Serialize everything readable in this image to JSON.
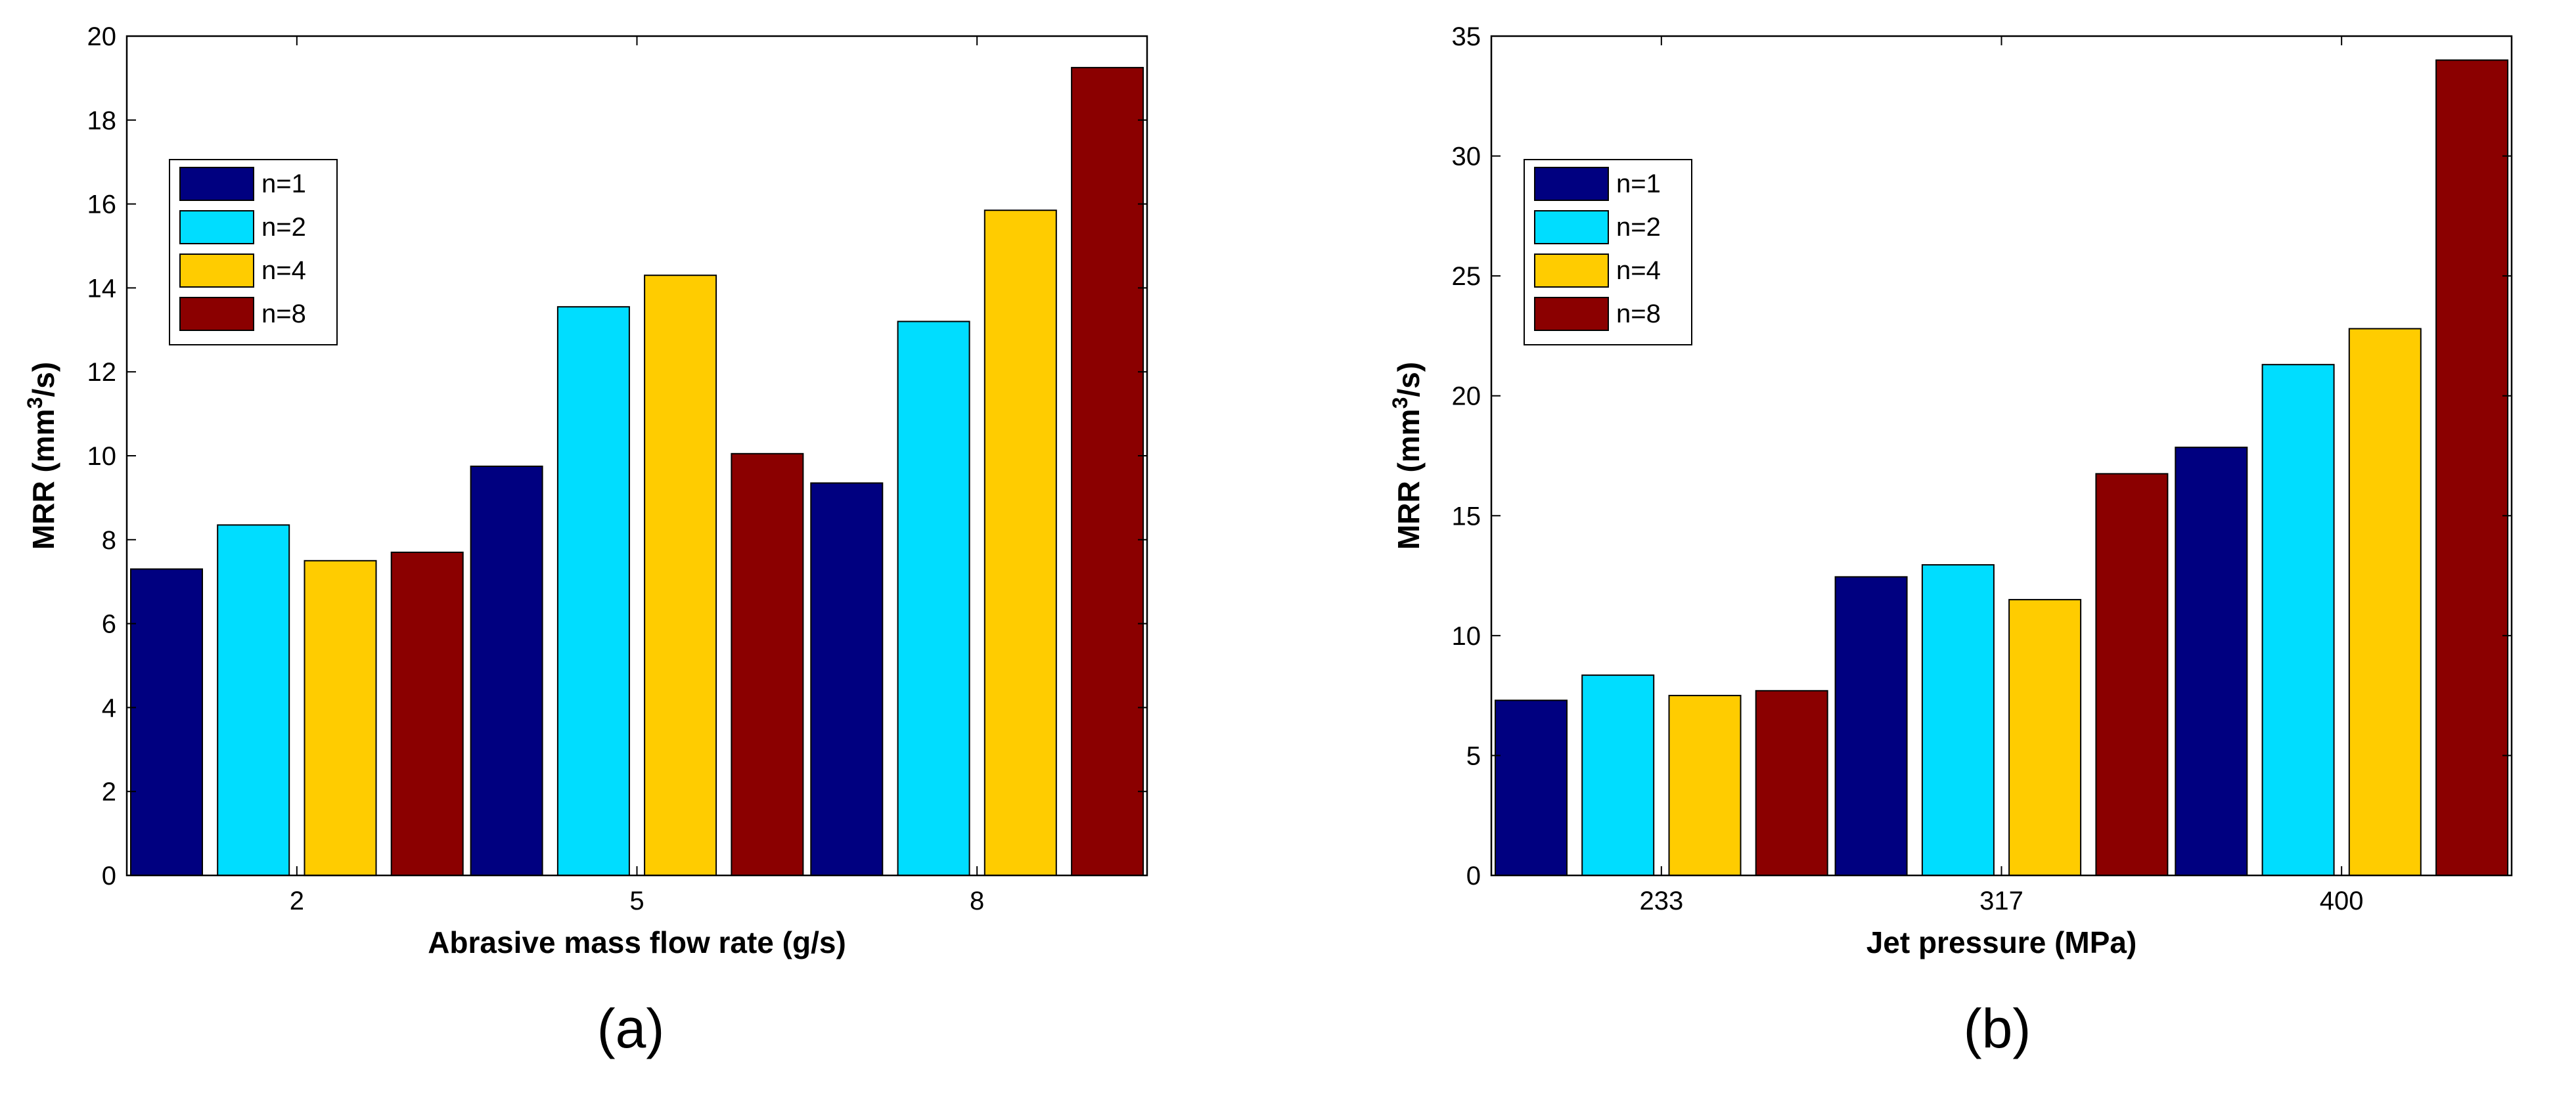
{
  "chart_data": [
    {
      "type": "bar",
      "panel_label": "(a)",
      "xlabel": "Abrasive mass flow rate (g/s)",
      "ylabel_main": "MRR (mm",
      "ylabel_sup": "3",
      "ylabel_end": "/s)",
      "ylim": [
        0,
        20
      ],
      "yticks": [
        0,
        2,
        4,
        6,
        8,
        10,
        12,
        14,
        16,
        18,
        20
      ],
      "categories": [
        "2",
        "5",
        "8"
      ],
      "legend_position": "upper-left",
      "series": [
        {
          "name": "n=1",
          "color": "#000080",
          "values": [
            7.3,
            9.75,
            9.35
          ]
        },
        {
          "name": "n=2",
          "color": "#00DDFF",
          "values": [
            8.35,
            13.55,
            13.2
          ]
        },
        {
          "name": "n=4",
          "color": "#FFCC00",
          "values": [
            7.5,
            14.3,
            15.85
          ]
        },
        {
          "name": "n=8",
          "color": "#8B0000",
          "values": [
            7.7,
            10.05,
            19.25
          ]
        }
      ]
    },
    {
      "type": "bar",
      "panel_label": "(b)",
      "xlabel": "Jet pressure (MPa)",
      "ylabel_main": "MRR (mm",
      "ylabel_sup": "3",
      "ylabel_end": "/s)",
      "ylim": [
        0,
        35
      ],
      "yticks": [
        0,
        5,
        10,
        15,
        20,
        25,
        30,
        35
      ],
      "categories": [
        "233",
        "317",
        "400"
      ],
      "legend_position": "upper-left",
      "series": [
        {
          "name": "n=1",
          "color": "#000080",
          "values": [
            7.3,
            12.45,
            17.85
          ]
        },
        {
          "name": "n=2",
          "color": "#00DDFF",
          "values": [
            8.35,
            12.95,
            21.3
          ]
        },
        {
          "name": "n=4",
          "color": "#FFCC00",
          "values": [
            7.5,
            11.5,
            22.8
          ]
        },
        {
          "name": "n=8",
          "color": "#8B0000",
          "values": [
            7.7,
            16.75,
            34.0
          ]
        }
      ]
    }
  ]
}
